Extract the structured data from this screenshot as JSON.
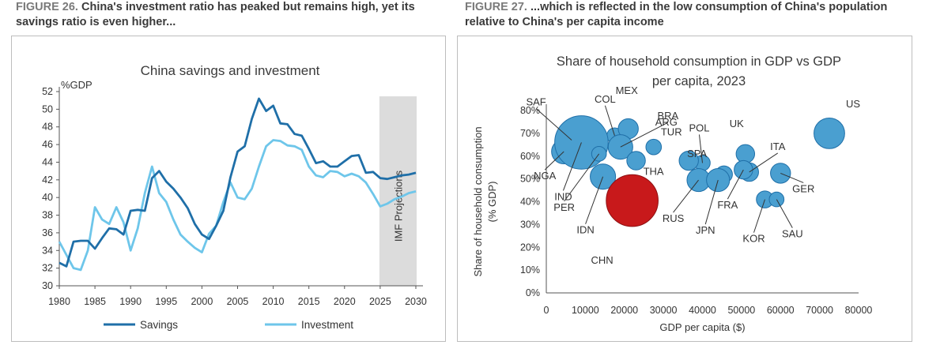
{
  "captions": {
    "fig26_label": "FIGURE 26.",
    "fig26_text": "China's investment ratio has peaked but remains high, yet its savings ratio is even higher...",
    "fig27_label": "FIGURE 27.",
    "fig27_text": "...which is reflected in the low consumption of China's population relative to China's per capita income"
  },
  "chart_data": [
    {
      "type": "line",
      "title": "China savings and investment",
      "ylabel": "%GDP",
      "xlabel": "",
      "x": [
        1980,
        1981,
        1982,
        1983,
        1984,
        1985,
        1986,
        1987,
        1988,
        1989,
        1990,
        1991,
        1992,
        1993,
        1994,
        1995,
        1996,
        1997,
        1998,
        1999,
        2000,
        2001,
        2002,
        2003,
        2004,
        2005,
        2006,
        2007,
        2008,
        2009,
        2010,
        2011,
        2012,
        2013,
        2014,
        2015,
        2016,
        2017,
        2018,
        2019,
        2020,
        2021,
        2022,
        2023,
        2024,
        2025,
        2026,
        2027,
        2028,
        2029,
        2030
      ],
      "series": [
        {
          "name": "Savings",
          "color": "#1f6fa8",
          "values": [
            32.6,
            32.2,
            35.0,
            35.1,
            35.1,
            34.2,
            35.4,
            36.5,
            36.4,
            35.8,
            38.5,
            38.6,
            38.5,
            42.2,
            43.0,
            41.8,
            41.0,
            40.0,
            38.8,
            37.0,
            35.8,
            35.3,
            36.8,
            38.5,
            42.3,
            45.2,
            45.8,
            48.9,
            51.2,
            49.8,
            50.4,
            48.4,
            48.3,
            47.2,
            47.0,
            45.5,
            43.9,
            44.1,
            43.5,
            43.5,
            44.1,
            44.7,
            44.8,
            42.8,
            42.9,
            42.2,
            42.1,
            42.3,
            42.5,
            42.6,
            42.8
          ]
        },
        {
          "name": "Investment",
          "color": "#6ec6ea",
          "values": [
            35.0,
            33.5,
            32.0,
            31.8,
            34.0,
            38.9,
            37.5,
            37.0,
            38.9,
            37.2,
            34.0,
            36.5,
            40.5,
            43.5,
            40.5,
            39.5,
            37.5,
            35.8,
            35.0,
            34.3,
            33.8,
            35.9,
            36.8,
            39.5,
            41.7,
            40.0,
            39.8,
            41.0,
            43.5,
            45.8,
            46.5,
            46.4,
            45.9,
            45.8,
            45.4,
            43.5,
            42.5,
            42.3,
            43.0,
            42.9,
            42.4,
            42.7,
            42.4,
            41.7,
            40.4,
            39.0,
            39.3,
            39.8,
            40.1,
            40.5,
            40.7
          ]
        }
      ],
      "shaded_region": {
        "from": 2025,
        "to": 2030,
        "label": "IMF Projections"
      },
      "xticks": [
        1980,
        1985,
        1990,
        1995,
        2000,
        2005,
        2010,
        2015,
        2020,
        2025,
        2030
      ],
      "yticks": [
        30,
        32,
        34,
        36,
        38,
        40,
        42,
        44,
        46,
        48,
        50,
        52
      ],
      "xlim": [
        1980,
        2031
      ],
      "ylim": [
        30,
        52
      ]
    },
    {
      "type": "scatter",
      "title_line1": "Share of household consumption in GDP vs GDP",
      "title_line2": "per capita, 2023",
      "xlabel": "GDP per capita ($)",
      "ylabel_line1": "Share of household consumption",
      "ylabel_line2": "(% GDP)",
      "xticks": [
        "0",
        "10000",
        "20000",
        "30000",
        "40000",
        "50000",
        "60000",
        "70000",
        "80000"
      ],
      "yticks": [
        "0%",
        "10%",
        "20%",
        "30%",
        "40%",
        "50%",
        "60%",
        "70%",
        "80%"
      ],
      "xlim": [
        0,
        80000
      ],
      "ylim": [
        0,
        80
      ],
      "bubble_color": "#4a9fd0",
      "highlight_color": "#c8191b",
      "points": [
        {
          "label": "SAF",
          "x": 6500,
          "y": 67,
          "size": 1.5
        },
        {
          "label": "COL",
          "x": 17500,
          "y": 69,
          "size": 1.0
        },
        {
          "label": "MEX",
          "x": 21000,
          "y": 72,
          "size": 1.6
        },
        {
          "label": "BRA",
          "x": 19000,
          "y": 64,
          "size": 2.2
        },
        {
          "label": "ARG",
          "x": 27500,
          "y": 64,
          "size": 1.0
        },
        {
          "label": "POL",
          "x": 40000,
          "y": 57,
          "size": 1.0
        },
        {
          "label": "TUR",
          "x": 36500,
          "y": 58,
          "size": 1.5
        },
        {
          "label": "SPA",
          "x": 45500,
          "y": 52,
          "size": 1.2
        },
        {
          "label": "UK",
          "x": 51000,
          "y": 61,
          "size": 1.4
        },
        {
          "label": "ITA",
          "x": 52000,
          "y": 53,
          "size": 1.4
        },
        {
          "label": "US",
          "x": 72500,
          "y": 70,
          "size": 3.0
        },
        {
          "label": "NGA",
          "x": 4500,
          "y": 62,
          "size": 2.2
        },
        {
          "label": "IND",
          "x": 9000,
          "y": 66,
          "size": 6.0
        },
        {
          "label": "IDN",
          "x": 14500,
          "y": 51,
          "size": 2.3
        },
        {
          "label": "PER",
          "x": 13500,
          "y": 61,
          "size": 0.9
        },
        {
          "label": "THA",
          "x": 23000,
          "y": 58,
          "size": 1.4
        },
        {
          "label": "CHN",
          "x": 22000,
          "y": 40.5,
          "size": 5.8,
          "highlight": true
        },
        {
          "label": "RUS",
          "x": 39000,
          "y": 49.5,
          "size": 2.0
        },
        {
          "label": "JPN",
          "x": 44000,
          "y": 49.5,
          "size": 2.0
        },
        {
          "label": "FRA",
          "x": 50500,
          "y": 54,
          "size": 1.4
        },
        {
          "label": "GER",
          "x": 60000,
          "y": 52.5,
          "size": 1.6
        },
        {
          "label": "KOR",
          "x": 56000,
          "y": 41,
          "size": 1.2
        },
        {
          "label": "SAU",
          "x": 59000,
          "y": 41,
          "size": 0.9
        }
      ]
    }
  ]
}
